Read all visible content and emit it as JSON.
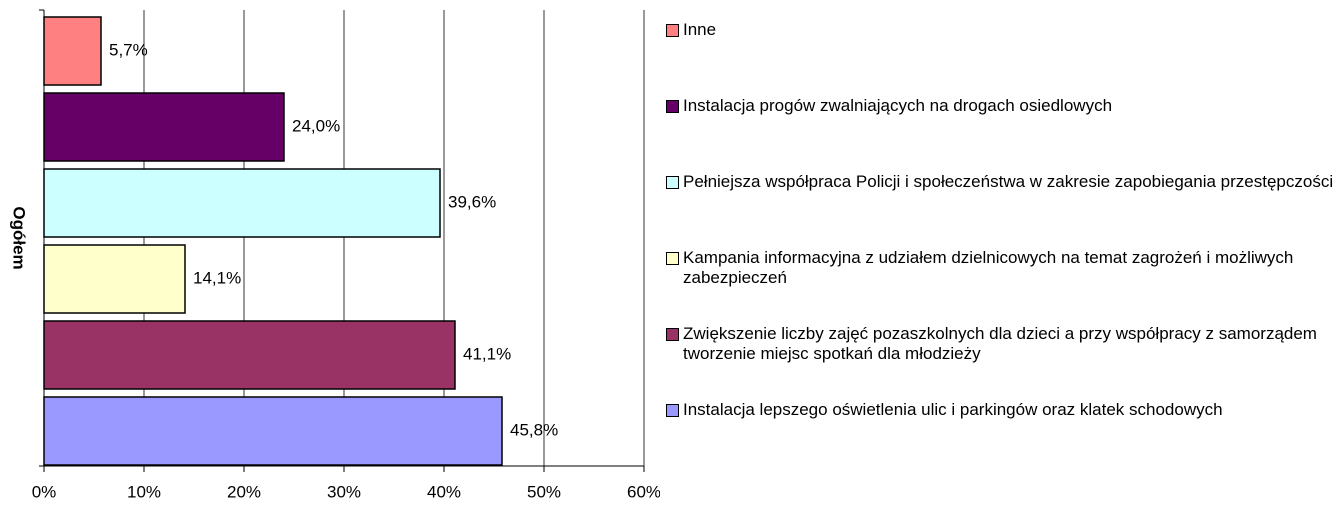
{
  "chart_data": {
    "type": "hbar",
    "categories": [
      "Ogółem"
    ],
    "series": [
      {
        "name": "Inne",
        "color": "#ff8080",
        "values": [
          5.7
        ],
        "value_labels": [
          "5,7%"
        ]
      },
      {
        "name": "Instalacja progów zwalniających na drogach osiedlowych",
        "color": "#660066",
        "values": [
          24.0
        ],
        "value_labels": [
          "24,0%"
        ]
      },
      {
        "name": "Pełniejsza współpraca Policji i społeczeństwa w zakresie zapobiegania przestępczości",
        "color": "#ccffff",
        "values": [
          39.6
        ],
        "value_labels": [
          "39,6%"
        ]
      },
      {
        "name": "Kampania informacyjna z udziałem dzielnicowych na temat zagrożeń i możliwych zabezpieczeń",
        "color": "#ffffcc",
        "values": [
          14.1
        ],
        "value_labels": [
          "14,1%"
        ]
      },
      {
        "name": "Zwiększenie liczby zajęć pozaszkolnych dla dzieci a przy współpracy z samorządem tworzenie miejsc spotkań dla młodzieży",
        "color": "#993366",
        "values": [
          41.1
        ],
        "value_labels": [
          "41,1%"
        ]
      },
      {
        "name": "Instalacja lepszego oświetlenia ulic i parkingów oraz klatek schodowych",
        "color": "#9999ff",
        "values": [
          45.8
        ],
        "value_labels": [
          "45,8%"
        ]
      }
    ],
    "xlim": [
      0,
      60
    ],
    "xticks": [
      {
        "value": 0,
        "label": "0%"
      },
      {
        "value": 10,
        "label": "10%"
      },
      {
        "value": 20,
        "label": "20%"
      },
      {
        "value": 30,
        "label": "30%"
      },
      {
        "value": 40,
        "label": "40%"
      },
      {
        "value": 50,
        "label": "50%"
      },
      {
        "value": 60,
        "label": "60%"
      }
    ],
    "grid": true,
    "legend": "right"
  }
}
